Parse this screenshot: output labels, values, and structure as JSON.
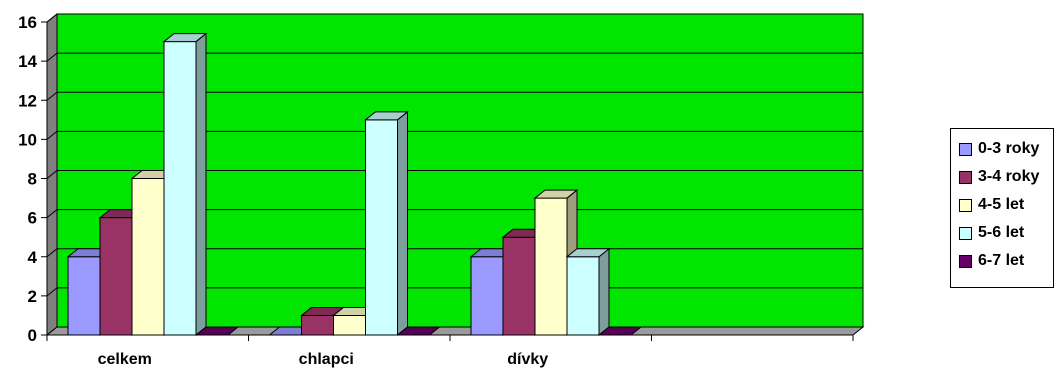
{
  "chart_data": {
    "type": "bar",
    "categories": [
      "celkem",
      "chlapci",
      "dívky",
      ""
    ],
    "series": [
      {
        "name": "0-3 roky",
        "values": [
          4,
          0,
          4,
          0
        ],
        "color": "#9999ff"
      },
      {
        "name": "3-4 roky",
        "values": [
          6,
          1,
          5,
          0
        ],
        "color": "#993366"
      },
      {
        "name": "4-5 let",
        "values": [
          8,
          1,
          7,
          0
        ],
        "color": "#ffffcc"
      },
      {
        "name": "5-6 let",
        "values": [
          15,
          11,
          4,
          0
        ],
        "color": "#ccffff"
      },
      {
        "name": "6-7 let",
        "values": [
          0,
          0,
          0,
          0
        ],
        "color": "#660066"
      }
    ],
    "ylim": [
      0,
      16
    ],
    "yticks": [
      0,
      2,
      4,
      6,
      8,
      10,
      12,
      14,
      16
    ],
    "grid": true,
    "plot_background": "#00e600",
    "legend_position": "right",
    "title": "",
    "xlabel": "",
    "ylabel": ""
  }
}
